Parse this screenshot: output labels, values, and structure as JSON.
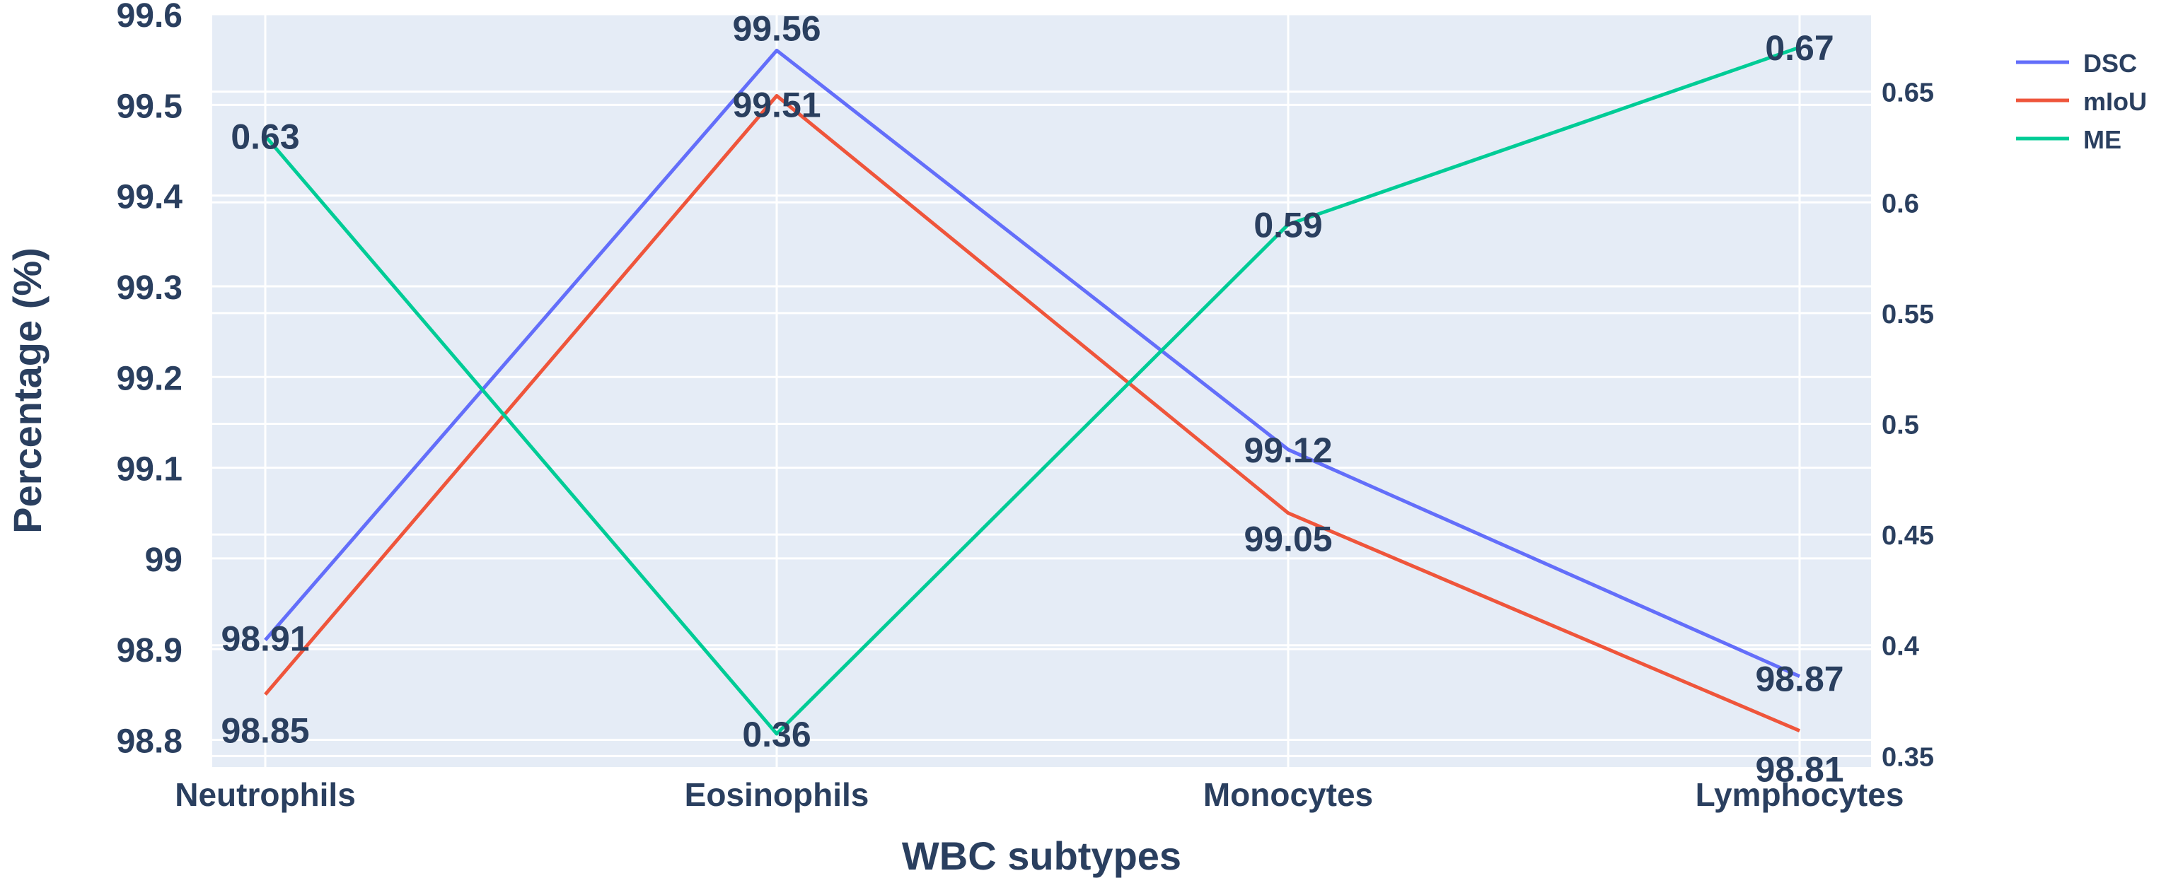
{
  "chart_data": {
    "type": "line",
    "title": "",
    "xlabel": "WBC subtypes",
    "ylabel": "Percentage (%)",
    "categories": [
      "Neutrophils",
      "Eosinophils",
      "Monocytes",
      "Lymphocytes"
    ],
    "y_axis": {
      "range": [
        98.77,
        99.6
      ],
      "ticks": [
        "98.8",
        "98.9",
        "99",
        "99.1",
        "99.2",
        "99.3",
        "99.4",
        "99.5",
        "99.6"
      ],
      "tick_values": [
        98.8,
        98.9,
        99.0,
        99.1,
        99.2,
        99.3,
        99.4,
        99.5,
        99.6
      ]
    },
    "y2_axis": {
      "range": [
        0.345,
        0.685
      ],
      "ticks": [
        "0.35",
        "0.4",
        "0.45",
        "0.5",
        "0.55",
        "0.6",
        "0.65"
      ],
      "tick_values": [
        0.35,
        0.4,
        0.45,
        0.5,
        0.55,
        0.6,
        0.65
      ]
    },
    "grid": true,
    "legend_position": "top-right",
    "series": [
      {
        "name": "DSC",
        "axis": "y",
        "color": "#636efa",
        "values": [
          98.91,
          99.56,
          99.12,
          98.87
        ],
        "labels": [
          "98.91",
          "99.56",
          "99.12",
          "98.87"
        ]
      },
      {
        "name": "mIoU",
        "axis": "y",
        "color": "#ef553b",
        "values": [
          98.85,
          99.51,
          99.05,
          98.81
        ],
        "labels": [
          "98.85",
          "99.51",
          "99.05",
          "98.81"
        ]
      },
      {
        "name": "ME",
        "axis": "y2",
        "color": "#00cc96",
        "values": [
          0.63,
          0.36,
          0.59,
          0.67
        ],
        "labels": [
          "0.63",
          "0.36",
          "0.59",
          "0.67"
        ]
      }
    ]
  }
}
